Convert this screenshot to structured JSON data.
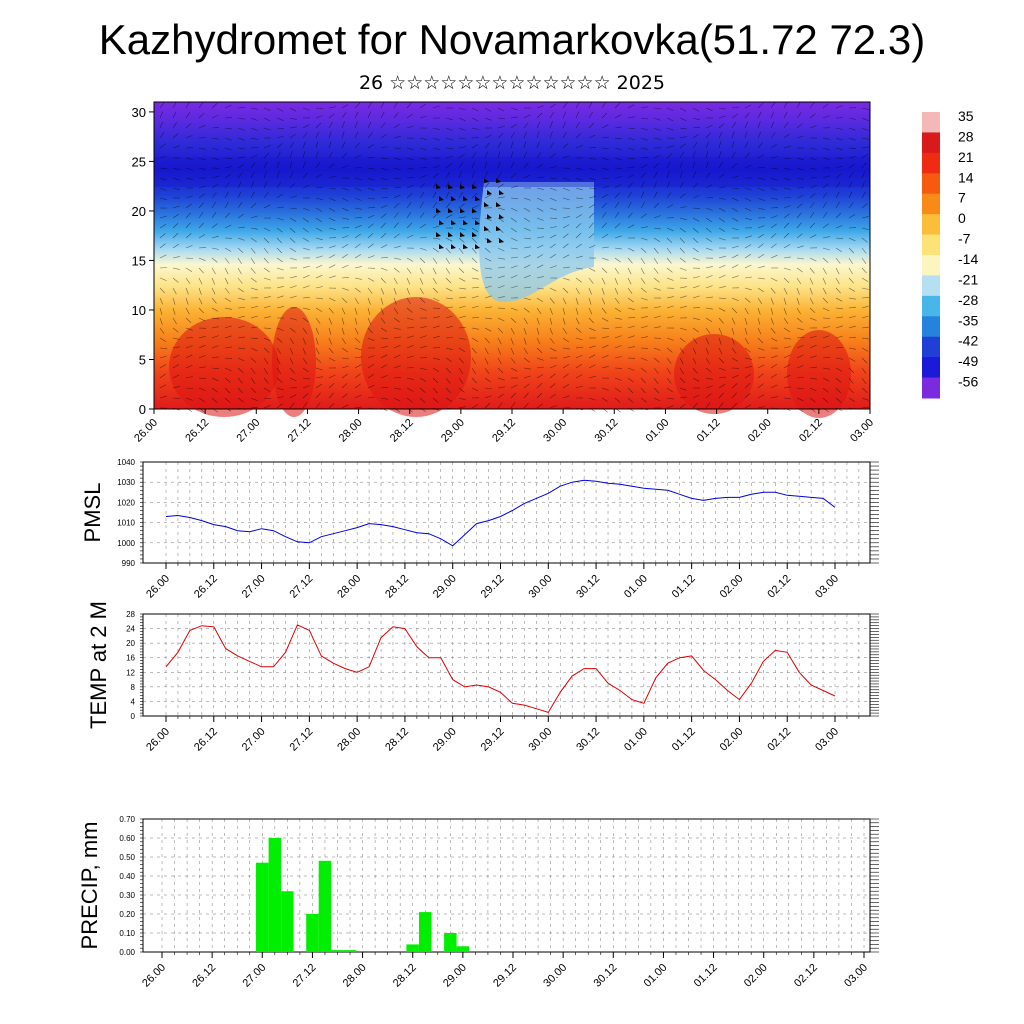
{
  "title": "Kazhydromet for Novamarkovka(51.72 72.3)",
  "subtitle": "26 ☆☆☆☆☆☆☆☆☆☆☆☆☆ 2025",
  "time_labels": [
    "26.00",
    "26.12",
    "27.00",
    "27.12",
    "28.00",
    "28.12",
    "29.00",
    "29.12",
    "30.00",
    "30.12",
    "01.00",
    "01.12",
    "02.00",
    "02.12",
    "03.00"
  ],
  "chart_data": [
    {
      "type": "heatmap",
      "name_hint": "cross-section",
      "y_ticks": [
        "0",
        "5",
        "10",
        "15",
        "20",
        "25",
        "30"
      ],
      "ylim": [
        0,
        31
      ],
      "colorbar_labels": [
        "35",
        "28",
        "21",
        "14",
        "7",
        "0",
        "-7",
        "-14",
        "-21",
        "-28",
        "-35",
        "-42",
        "-49",
        "-56"
      ],
      "colorbar_colors": [
        "#f4b8b8",
        "#d91a1a",
        "#ef2b13",
        "#f55a10",
        "#f98a17",
        "#fbbe3a",
        "#fde277",
        "#fcf5c0",
        "#b7dff2",
        "#49b6ea",
        "#2583de",
        "#1f3fd6",
        "#1a1ad8",
        "#7b2ae0"
      ]
    },
    {
      "type": "line",
      "ylabel": "PMSL",
      "ylim": [
        990,
        1040
      ],
      "y_ticks": [
        "990",
        "1000",
        "1010",
        "1020",
        "1030",
        "1040"
      ],
      "color": "#0000e0",
      "values": [
        1013,
        1013.5,
        1012.5,
        1011,
        1009,
        1008,
        1006,
        1005.5,
        1007,
        1006,
        1003,
        1000.5,
        1000,
        1003,
        1004.5,
        1006,
        1007.5,
        1009.5,
        1009,
        1008,
        1006.5,
        1005,
        1004.5,
        1002,
        998.5,
        1004,
        1009.5,
        1011,
        1013,
        1016,
        1019.5,
        1022,
        1024.5,
        1028,
        1030,
        1031,
        1030.5,
        1029.5,
        1029,
        1028,
        1027,
        1026.5,
        1026,
        1024,
        1022,
        1021,
        1022,
        1022.5,
        1022.5,
        1024,
        1025,
        1025,
        1023.5,
        1023,
        1022.5,
        1022,
        1017.5
      ]
    },
    {
      "type": "line",
      "ylabel": "TEMP at 2 M",
      "ylim": [
        0,
        28
      ],
      "y_ticks": [
        "0",
        "4",
        "8",
        "12",
        "16",
        "20",
        "24",
        "28"
      ],
      "color": "#e00000",
      "values": [
        13.5,
        17.5,
        23.5,
        24.8,
        24.5,
        18.5,
        16.5,
        15,
        13.5,
        13.5,
        17.5,
        25,
        23.5,
        16.5,
        14.5,
        13,
        12,
        13.5,
        21.5,
        24.5,
        24,
        19,
        16,
        16,
        10,
        8,
        8.5,
        8,
        6.5,
        3.5,
        3,
        2,
        1,
        6.5,
        11,
        13,
        13,
        9,
        7,
        4.5,
        3.5,
        10.5,
        14.5,
        16,
        16.5,
        12.5,
        10,
        7,
        4.5,
        9,
        15,
        18,
        17.5,
        12,
        8.5,
        7,
        5.5
      ]
    },
    {
      "type": "bar",
      "ylabel": "PRECIP, mm",
      "ylim": [
        0,
        0.7
      ],
      "y_ticks": [
        "0.00",
        "0.10",
        "0.20",
        "0.30",
        "0.40",
        "0.50",
        "0.60",
        "0.70"
      ],
      "color": "#00ee00",
      "bars": [
        {
          "x": 8,
          "value": 0.47
        },
        {
          "x": 9,
          "value": 0.6
        },
        {
          "x": 10,
          "value": 0.32
        },
        {
          "x": 12,
          "value": 0.2
        },
        {
          "x": 13,
          "value": 0.48
        },
        {
          "x": 14,
          "value": 0.01
        },
        {
          "x": 15,
          "value": 0.01
        },
        {
          "x": 20,
          "value": 0.04
        },
        {
          "x": 21,
          "value": 0.21
        },
        {
          "x": 23,
          "value": 0.1
        },
        {
          "x": 24,
          "value": 0.03
        }
      ]
    }
  ]
}
